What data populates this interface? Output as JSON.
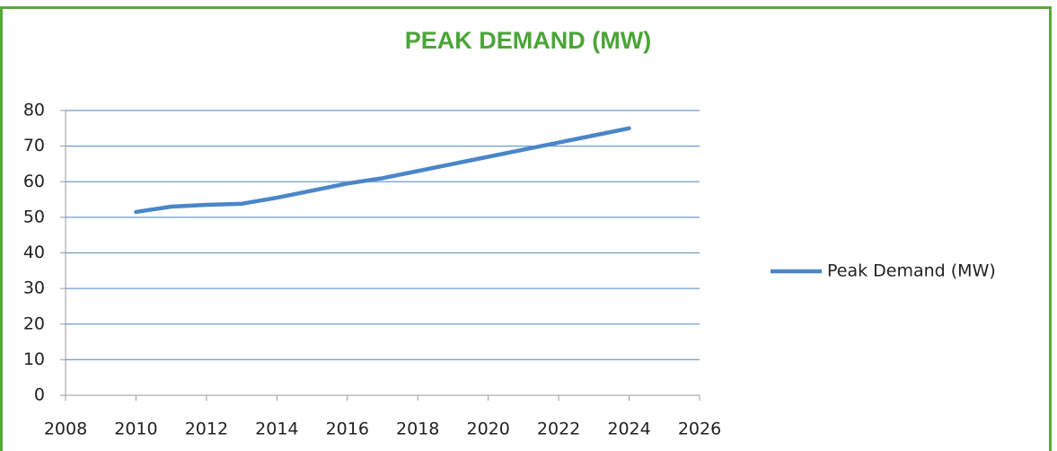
{
  "chart_data": {
    "type": "line",
    "title": "PEAK DEMAND (MW)",
    "x": [
      2010,
      2011,
      2012,
      2013,
      2014,
      2015,
      2016,
      2017,
      2018,
      2019,
      2020,
      2021,
      2022,
      2023,
      2024
    ],
    "series": [
      {
        "name": "Peak Demand (MW)",
        "color": "#4a86c8",
        "values": [
          51.5,
          53,
          53.5,
          53.8,
          55.5,
          57.5,
          59.5,
          61,
          63,
          65,
          67,
          69,
          71,
          73,
          75
        ]
      }
    ],
    "xlim": [
      2008,
      2026
    ],
    "xticks": [
      2008,
      2010,
      2012,
      2014,
      2016,
      2018,
      2020,
      2022,
      2024,
      2026
    ],
    "ylim": [
      0,
      80
    ],
    "yticks": [
      0,
      10,
      20,
      30,
      40,
      50,
      60,
      70,
      80
    ],
    "grid": true,
    "legend": "right"
  }
}
